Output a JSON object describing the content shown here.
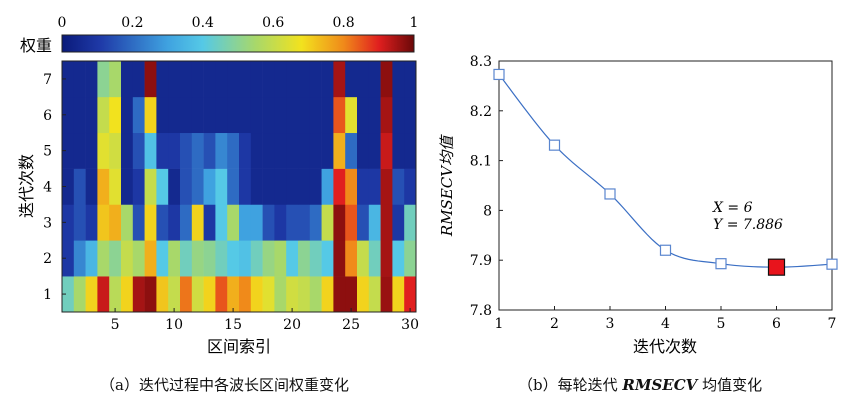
{
  "chart_data": [
    {
      "type": "heatmap",
      "xlabel": "区间索引",
      "ylabel": "迭代次数",
      "x_ticks": [
        "5",
        "10",
        "15",
        "20",
        "25",
        "30"
      ],
      "y_ticks": [
        "1",
        "2",
        "3",
        "4",
        "5",
        "6",
        "7"
      ],
      "colorbar": {
        "label": "权重",
        "ticks": [
          "0",
          "0.2",
          "0.4",
          "0.6",
          "0.8",
          "1"
        ],
        "range": [
          0,
          1
        ]
      },
      "n_columns": 30,
      "n_rows": 7,
      "rows": [
        [
          0.45,
          0.55,
          0.7,
          0.92,
          0.58,
          0.7,
          0.95,
          0.97,
          0.72,
          0.6,
          0.82,
          0.62,
          0.7,
          0.85,
          0.75,
          0.8,
          0.7,
          0.65,
          0.55,
          0.62,
          0.6,
          0.55,
          0.7,
          0.97,
          0.97,
          0.7,
          0.6,
          0.96,
          0.7,
          0.9
        ],
        [
          0.1,
          0.25,
          0.35,
          0.55,
          0.5,
          0.6,
          0.55,
          0.75,
          0.4,
          0.55,
          0.45,
          0.52,
          0.5,
          0.45,
          0.4,
          0.38,
          0.45,
          0.52,
          0.55,
          0.4,
          0.5,
          0.45,
          0.4,
          0.97,
          0.8,
          0.6,
          0.45,
          0.95,
          0.4,
          0.5
        ],
        [
          0.1,
          0.15,
          0.1,
          0.72,
          0.75,
          0.55,
          0.15,
          0.7,
          0.15,
          0.1,
          0.2,
          0.7,
          0.1,
          0.4,
          0.55,
          0.3,
          0.3,
          0.15,
          0.1,
          0.15,
          0.15,
          0.2,
          0.6,
          0.97,
          0.85,
          0.15,
          0.35,
          0.95,
          0.1,
          0.45
        ],
        [
          0.05,
          0.15,
          0.05,
          0.75,
          0.65,
          0.05,
          0.1,
          0.6,
          0.4,
          0.05,
          0.15,
          0.2,
          0.3,
          0.4,
          0.2,
          0.1,
          0.05,
          0.05,
          0.05,
          0.05,
          0.05,
          0.05,
          0.3,
          0.9,
          0.8,
          0.1,
          0.1,
          0.95,
          0.15,
          0.1
        ],
        [
          0.05,
          0.05,
          0.05,
          0.65,
          0.62,
          0.05,
          0.15,
          0.38,
          0.1,
          0.1,
          0.15,
          0.2,
          0.15,
          0.25,
          0.2,
          0.1,
          0.05,
          0.05,
          0.05,
          0.05,
          0.05,
          0.05,
          0.05,
          0.75,
          0.2,
          0.05,
          0.05,
          0.92,
          0.05,
          0.05
        ],
        [
          0.05,
          0.05,
          0.05,
          0.6,
          0.68,
          0.05,
          0.2,
          0.7,
          0.05,
          0.05,
          0.05,
          0.05,
          0.05,
          0.05,
          0.05,
          0.05,
          0.05,
          0.05,
          0.05,
          0.05,
          0.05,
          0.05,
          0.05,
          0.85,
          0.65,
          0.05,
          0.05,
          0.95,
          0.05,
          0.05
        ],
        [
          0.05,
          0.05,
          0.05,
          0.5,
          0.55,
          0.05,
          0.05,
          0.97,
          0.05,
          0.05,
          0.05,
          0.05,
          0.05,
          0.05,
          0.05,
          0.05,
          0.05,
          0.05,
          0.05,
          0.05,
          0.05,
          0.05,
          0.05,
          0.95,
          0.05,
          0.05,
          0.05,
          0.97,
          0.05,
          0.05
        ]
      ]
    },
    {
      "type": "line",
      "xlabel": "迭代次数",
      "ylabel": "RMSECV均值",
      "x": [
        1,
        2,
        3,
        4,
        5,
        6,
        7
      ],
      "y": [
        8.273,
        8.131,
        8.033,
        7.92,
        7.893,
        7.886,
        7.892
      ],
      "xlim": [
        1,
        7
      ],
      "ylim": [
        7.8,
        8.3
      ],
      "x_ticks": [
        "1",
        "2",
        "3",
        "4",
        "5",
        "6",
        "7"
      ],
      "y_ticks": [
        "7.8",
        "7.9",
        "8",
        "8.1",
        "8.2",
        "8.3"
      ],
      "highlight_index": 5,
      "annotation": {
        "x_text": "X = 6",
        "y_text": "Y = 7.886"
      },
      "colors": {
        "line": "#3b6fc4",
        "marker": "#5a86cf",
        "highlight": "#e8141c"
      }
    }
  ],
  "captions": {
    "a": "（a）迭代过程中各波长区间权重变化",
    "b_prefix": "（b）每轮迭代 ",
    "b_italic": "RMSECV",
    "b_suffix": " 均值变化"
  }
}
